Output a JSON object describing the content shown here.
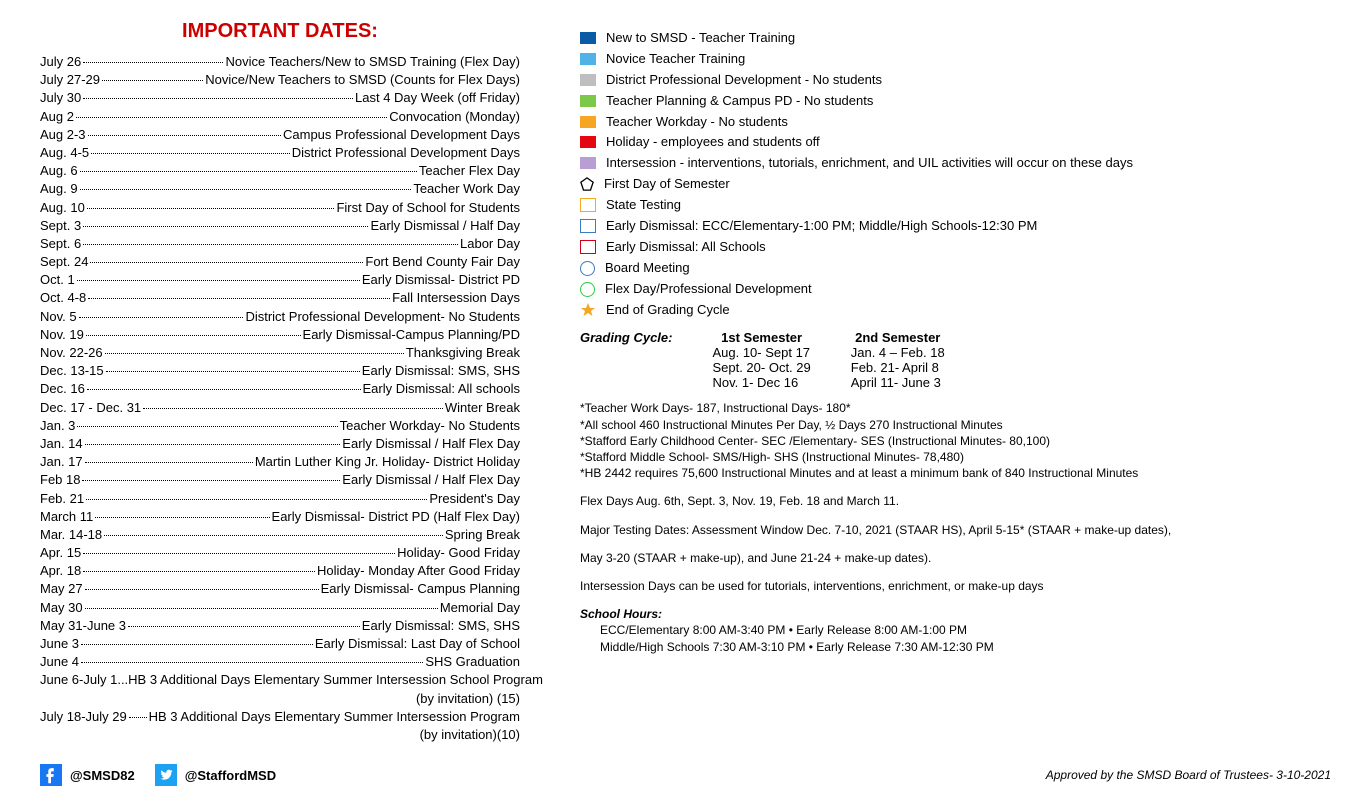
{
  "title": "IMPORTANT DATES:",
  "title_color": "#c00",
  "dates": [
    {
      "date": "July 26",
      "desc": "Novice Teachers/New to SMSD Training (Flex Day)"
    },
    {
      "date": "July 27-29",
      "desc": "Novice/New Teachers to SMSD (Counts for Flex Days)"
    },
    {
      "date": "July 30",
      "desc": "Last 4 Day Week (off Friday)"
    },
    {
      "date": "Aug 2",
      "desc": "Convocation (Monday)"
    },
    {
      "date": "Aug 2-3",
      "desc": "Campus Professional Development Days"
    },
    {
      "date": "Aug. 4-5",
      "desc": "District Professional Development Days"
    },
    {
      "date": "Aug. 6",
      "desc": "Teacher Flex Day"
    },
    {
      "date": "Aug. 9",
      "desc": "Teacher Work Day"
    },
    {
      "date": "Aug. 10",
      "desc": "First Day of School for Students"
    },
    {
      "date": "Sept. 3",
      "desc": "Early Dismissal / Half Day"
    },
    {
      "date": "Sept. 6",
      "desc": "Labor Day"
    },
    {
      "date": "Sept. 24",
      "desc": "Fort Bend County Fair Day"
    },
    {
      "date": "Oct. 1",
      "desc": "Early Dismissal- District PD"
    },
    {
      "date": "Oct. 4-8",
      "desc": "Fall Intersession Days"
    },
    {
      "date": "Nov. 5",
      "desc": "District Professional Development- No Students"
    },
    {
      "date": "Nov. 19",
      "desc": "Early Dismissal-Campus Planning/PD"
    },
    {
      "date": "Nov. 22-26",
      "desc": "Thanksgiving Break"
    },
    {
      "date": "Dec. 13-15",
      "desc": "Early Dismissal: SMS, SHS"
    },
    {
      "date": "Dec. 16",
      "desc": "Early Dismissal: All schools"
    },
    {
      "date": "Dec. 17 - Dec. 31",
      "desc": "Winter Break"
    },
    {
      "date": "Jan. 3",
      "desc": "Teacher Workday- No Students"
    },
    {
      "date": "Jan. 14",
      "desc": "Early Dismissal / Half Flex Day"
    },
    {
      "date": "Jan. 17",
      "desc": "Martin Luther King Jr. Holiday- District Holiday"
    },
    {
      "date": "Feb 18",
      "desc": "Early Dismissal / Half Flex Day"
    },
    {
      "date": "Feb. 21",
      "desc": "President's Day"
    },
    {
      "date": "March 11",
      "desc": "Early Dismissal- District PD (Half Flex Day)"
    },
    {
      "date": "Mar. 14-18",
      "desc": "Spring Break"
    },
    {
      "date": "Apr. 15",
      "desc": "Holiday- Good Friday"
    },
    {
      "date": "Apr. 18",
      "desc": "Holiday- Monday After Good Friday"
    },
    {
      "date": "May 27",
      "desc": "Early Dismissal- Campus Planning"
    },
    {
      "date": "May 30",
      "desc": "Memorial Day"
    },
    {
      "date": "May 31-June 3",
      "desc": "Early Dismissal: SMS, SHS"
    },
    {
      "date": "June 3",
      "desc": "Early Dismissal: Last Day of School"
    },
    {
      "date": "June 4",
      "desc": "SHS Graduation"
    },
    {
      "date": "June 6-July 1",
      "desc": "HB 3 Additional Days Elementary Summer Intersession School Program",
      "cont": "(by invitation) (15)",
      "nodots": true
    },
    {
      "date": "July 18-July 29",
      "desc": "HB 3 Additional Days Elementary Summer Intersession Program",
      "cont": "(by invitation)(10)"
    }
  ],
  "legend": [
    {
      "type": "fill",
      "color": "#0b5aa6",
      "label": "New to SMSD - Teacher Training"
    },
    {
      "type": "fill",
      "color": "#4fb3e8",
      "label": "Novice Teacher Training"
    },
    {
      "type": "fill",
      "color": "#bfbfbf",
      "label": "District Professional Development - No students"
    },
    {
      "type": "fill",
      "color": "#7cc84a",
      "label": "Teacher Planning & Campus PD - No students"
    },
    {
      "type": "fill",
      "color": "#f5a623",
      "label": "Teacher Workday - No students"
    },
    {
      "type": "fill",
      "color": "#e30613",
      "label": "Holiday - employees and students off"
    },
    {
      "type": "fill",
      "color": "#b99ed6",
      "label": "Intersession - interventions, tutorials, enrichment, and UIL activities will occur on these days"
    },
    {
      "type": "pentagon",
      "label": "First Day of Semester"
    },
    {
      "type": "sq-yellow",
      "label": "State Testing"
    },
    {
      "type": "sq-blue",
      "label": "Early Dismissal: ECC/Elementary-1:00 PM; Middle/High Schools-12:30 PM"
    },
    {
      "type": "sq-red",
      "label": "Early Dismissal: All Schools"
    },
    {
      "type": "circ-blue",
      "label": "Board Meeting"
    },
    {
      "type": "circ-green",
      "label": "Flex Day/Professional Development"
    },
    {
      "type": "star",
      "label": "End of Grading Cycle"
    }
  ],
  "grading_cycle_label": "Grading Cycle:",
  "grading": {
    "sem1": {
      "title": "1st Semester",
      "rows": [
        "Aug. 10- Sept 17",
        "Sept. 20-  Oct. 29",
        "Nov. 1- Dec 16"
      ]
    },
    "sem2": {
      "title": "2nd Semester",
      "rows": [
        "Jan. 4 – Feb. 18",
        "Feb. 21-  April 8",
        "April 11- June 3"
      ]
    }
  },
  "notes1": [
    "*Teacher Work Days- 187, Instructional Days- 180*",
    "*All school 460 Instructional Minutes Per Day, ½ Days 270 Instructional Minutes",
    "*Stafford Early Childhood Center- SEC /Elementary- SES (Instructional Minutes- 80,100)",
    "*Stafford Middle School- SMS/High- SHS (Instructional Minutes- 78,480)",
    "*HB 2442 requires 75,600 Instructional Minutes and at least a minimum bank of 840 Instructional Minutes"
  ],
  "notes2": [
    "Flex Days Aug. 6th, Sept. 3, Nov. 19, Feb. 18 and March 11.",
    "Major Testing Dates:  Assessment Window Dec. 7-10, 2021 (STAAR HS), April 5-15* (STAAR + make-up dates),",
    "May 3-20 (STAAR + make-up), and June 21-24 + make-up dates).",
    "Intersession Days can be used for tutorials, interventions, enrichment, or make-up days"
  ],
  "school_hours_label": "School Hours:",
  "school_hours": [
    "ECC/Elementary 8:00 AM-3:40 PM • Early Release 8:00 AM-1:00 PM",
    "Middle/High Schools 7:30 AM-3:10 PM • Early Release 7:30 AM-12:30 PM"
  ],
  "socials": {
    "fb_handle": "@SMSD82",
    "tw_handle": "@StaffordMSD",
    "fb_color": "#1877f2",
    "tw_color": "#1da1f2"
  },
  "approved": "Approved by the SMSD Board of Trustees- 3-10-2021"
}
